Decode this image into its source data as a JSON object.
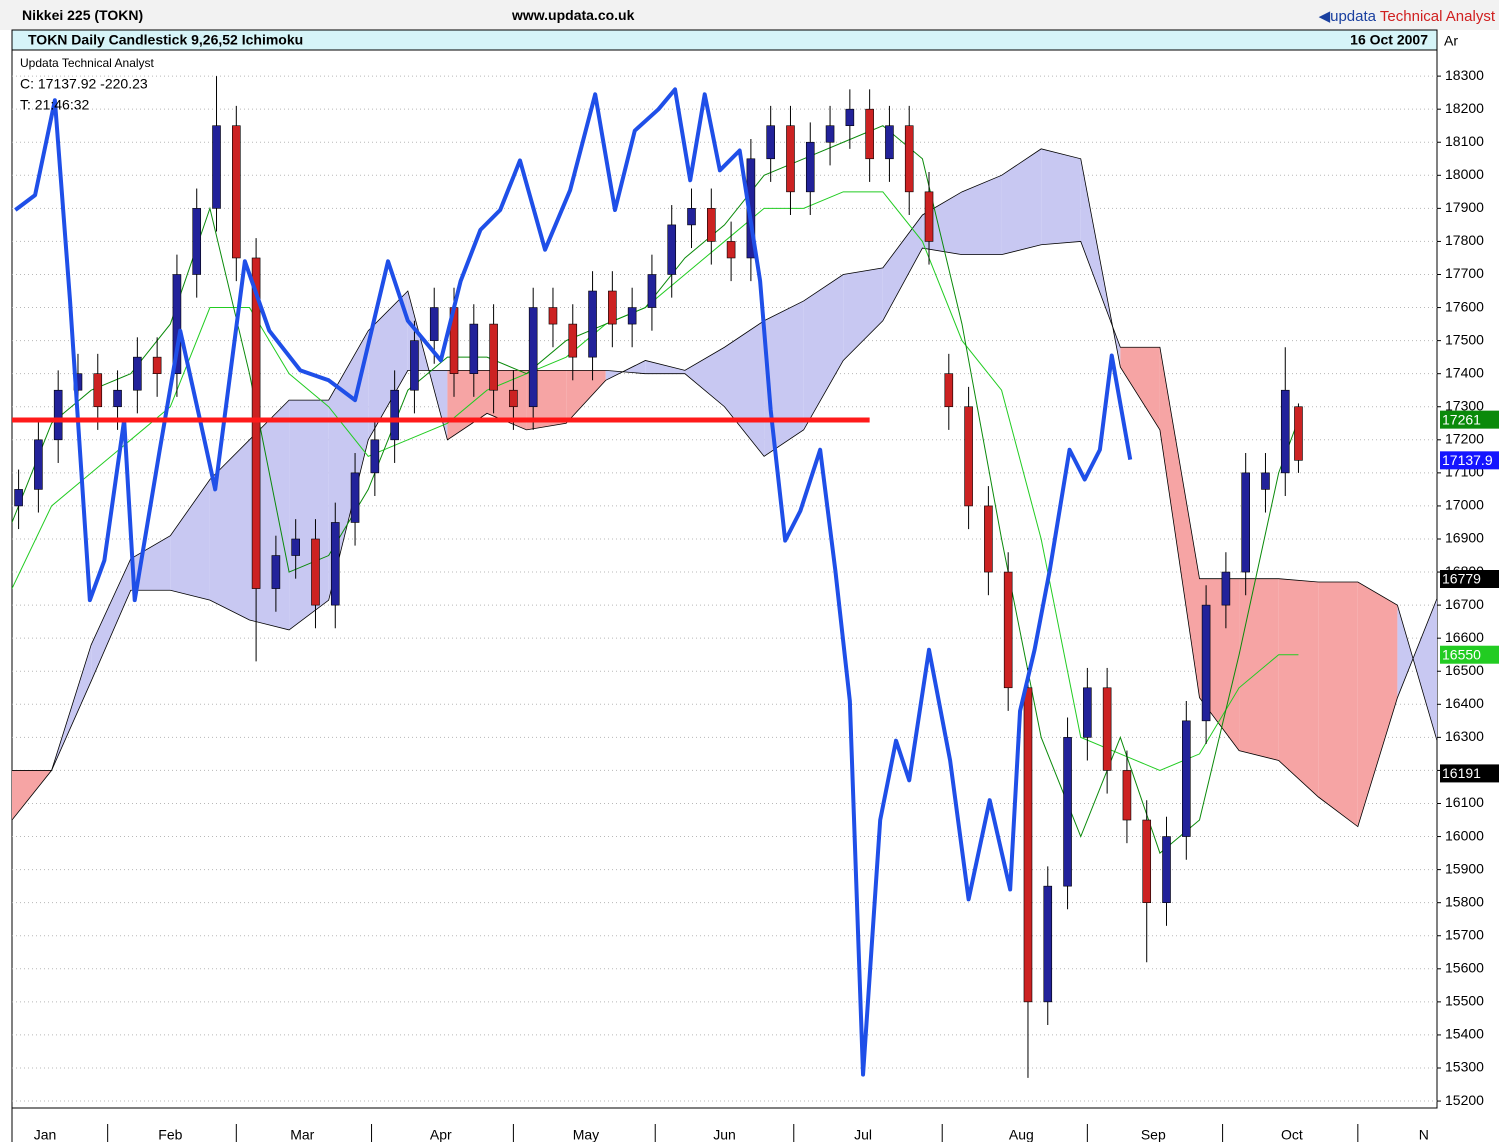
{
  "header": {
    "symbol": "Nikkei 225 (TOKN)",
    "url": "www.updata.co.uk",
    "brand": "updata",
    "brand_tail": "Technical Analyst"
  },
  "chart_data": {
    "type": "candlestick",
    "title": "TOKN Daily Candlestick  9,26,52 Ichimoku",
    "date": "16 Oct 2007",
    "corner_label": "Ar",
    "info": [
      "Updata Technical Analyst",
      "C: 17137.92  -220.23",
      "T: 21:46:32"
    ],
    "x": [
      1,
      4,
      7,
      10,
      13,
      16,
      19,
      22,
      25,
      28,
      31,
      34,
      37,
      40,
      43,
      46,
      49,
      52,
      55,
      58,
      61,
      64,
      67,
      70,
      73,
      76,
      79,
      82,
      85,
      88,
      91,
      94,
      97,
      100,
      103,
      106,
      109,
      112,
      115,
      118,
      121,
      124,
      127,
      130,
      133,
      136,
      139,
      142,
      145,
      148,
      151,
      154,
      157,
      160,
      163,
      166,
      169,
      172,
      175,
      178,
      181,
      184,
      187,
      190,
      193,
      195
    ],
    "open": [
      17000,
      17050,
      17200,
      17350,
      17400,
      17300,
      17350,
      17450,
      17400,
      17700,
      17900,
      18150,
      17750,
      16750,
      16850,
      16900,
      16700,
      16950,
      17100,
      17200,
      17350,
      17500,
      17600,
      17400,
      17550,
      17350,
      17300,
      17600,
      17550,
      17450,
      17650,
      17550,
      17600,
      17700,
      17850,
      17900,
      17800,
      17750,
      18050,
      18150,
      17950,
      18100,
      18150,
      18200,
      18050,
      18150,
      17950,
      17400,
      17300,
      17000,
      16800,
      16450,
      15500,
      15850,
      16300,
      16450,
      16200,
      16050,
      15800,
      16000,
      16350,
      16700,
      16800,
      17050,
      17100,
      17300
    ],
    "high": [
      17110,
      17260,
      17410,
      17460,
      17460,
      17410,
      17510,
      17510,
      17760,
      17960,
      18300,
      18210,
      17810,
      16910,
      16960,
      16960,
      17010,
      17160,
      17260,
      17410,
      17560,
      17660,
      17660,
      17610,
      17610,
      17410,
      17660,
      17660,
      17610,
      17710,
      17710,
      17660,
      17760,
      17910,
      17960,
      17960,
      17860,
      18110,
      18210,
      18210,
      18160,
      18210,
      18260,
      18260,
      18210,
      18210,
      18010,
      17460,
      17360,
      17060,
      16860,
      16510,
      15910,
      16360,
      16510,
      16510,
      16260,
      16110,
      16060,
      16410,
      16760,
      16860,
      17160,
      17160,
      17480,
      17310
    ],
    "low": [
      16930,
      16980,
      17130,
      17280,
      17230,
      17230,
      17280,
      17330,
      17330,
      17630,
      17830,
      17680,
      16530,
      16680,
      16780,
      16630,
      16630,
      16880,
      17030,
      17130,
      17280,
      17430,
      17330,
      17330,
      17280,
      17230,
      17230,
      17480,
      17380,
      17380,
      17480,
      17480,
      17530,
      17630,
      17780,
      17730,
      17680,
      17680,
      17980,
      17880,
      17880,
      18030,
      18080,
      17980,
      17980,
      17880,
      17730,
      17230,
      16930,
      16730,
      16380,
      15270,
      15430,
      15780,
      16230,
      16130,
      15980,
      15620,
      15730,
      15930,
      16280,
      16630,
      16730,
      16980,
      17030,
      17100
    ],
    "close": [
      17050,
      17200,
      17350,
      17400,
      17300,
      17350,
      17450,
      17400,
      17700,
      17900,
      18150,
      17750,
      16750,
      16850,
      16900,
      16700,
      16950,
      17100,
      17200,
      17350,
      17500,
      17600,
      17400,
      17550,
      17350,
      17300,
      17600,
      17550,
      17450,
      17650,
      17550,
      17600,
      17700,
      17850,
      17900,
      17800,
      17750,
      18050,
      18150,
      17950,
      18100,
      18150,
      18200,
      18050,
      18150,
      17950,
      17800,
      17300,
      17000,
      16800,
      16450,
      15500,
      15850,
      16300,
      16450,
      16200,
      16050,
      15800,
      16000,
      16350,
      16700,
      16800,
      17100,
      17100,
      17350,
      17137.92
    ],
    "up_color": "#22229a",
    "down_color": "#cc2222",
    "overlay": {
      "color": "#1f4fe8",
      "x": [
        0.5,
        3.5,
        6.5,
        8.8,
        11.8,
        14,
        17,
        18.6,
        22.4,
        25.5,
        28.5,
        30.8,
        35.3,
        39,
        43.7,
        48,
        52,
        57,
        60,
        65,
        68,
        71,
        74,
        77,
        80.8,
        84.6,
        88.4,
        91.4,
        94.4,
        98,
        100.5,
        102.8,
        105,
        107.3,
        110.3,
        113.4,
        115,
        117.2,
        119.5,
        122.5,
        124.8,
        127,
        129,
        131.6,
        134,
        136,
        139,
        142.2,
        145,
        148.2,
        151.3,
        152.8,
        155,
        157.3,
        160.3,
        162.6,
        164.9,
        166.7,
        169.5
      ],
      "values": [
        17895,
        17940,
        18227,
        17620,
        16715,
        16835,
        17260,
        16715,
        17170,
        17530,
        17260,
        17050,
        17740,
        17530,
        17410,
        17380,
        17320,
        17740,
        17560,
        17440,
        17680,
        17835,
        17895,
        18045,
        17775,
        17955,
        18245,
        17895,
        18135,
        18200,
        18260,
        17985,
        18245,
        18015,
        18075,
        17680,
        17290,
        16895,
        16985,
        17170,
        16805,
        16410,
        15280,
        16050,
        16290,
        16170,
        16565,
        16230,
        15810,
        16110,
        15840,
        16380,
        16565,
        16805,
        17170,
        17080,
        17170,
        17455,
        17140
      ]
    },
    "tenkan": {
      "color": "#0a8a0a",
      "x": [
        0,
        6,
        12,
        18,
        24,
        30,
        36,
        42,
        48,
        54,
        60,
        66,
        72,
        78,
        84,
        90,
        96,
        102,
        108,
        114,
        120,
        126,
        132,
        138,
        144,
        150,
        156,
        162,
        168,
        174,
        180,
        186,
        192,
        195
      ],
      "values": [
        16950,
        17250,
        17350,
        17400,
        17550,
        17900,
        17400,
        16800,
        16850,
        17050,
        17350,
        17450,
        17450,
        17400,
        17500,
        17550,
        17600,
        17750,
        17850,
        18000,
        18050,
        18100,
        18150,
        18050,
        17550,
        16900,
        16300,
        16000,
        16300,
        15950,
        16050,
        16550,
        17100,
        17261
      ]
    },
    "kijun": {
      "color": "#22cc22",
      "x": [
        0,
        6,
        12,
        18,
        24,
        30,
        36,
        42,
        48,
        54,
        60,
        66,
        72,
        78,
        84,
        90,
        96,
        102,
        108,
        114,
        120,
        126,
        132,
        138,
        144,
        150,
        156,
        162,
        168,
        174,
        180,
        186,
        192,
        195
      ],
      "values": [
        16750,
        17000,
        17100,
        17200,
        17300,
        17600,
        17600,
        17400,
        17300,
        17150,
        17200,
        17250,
        17350,
        17400,
        17450,
        17550,
        17600,
        17700,
        17800,
        17900,
        17900,
        17950,
        17950,
        17800,
        17500,
        17350,
        16900,
        16300,
        16250,
        16200,
        16250,
        16450,
        16550,
        16550
      ]
    },
    "cloud": {
      "bull_color": "#c8c8f2",
      "bear_color": "#f6a4a4",
      "x": [
        0,
        6,
        12,
        18,
        24,
        30,
        36,
        42,
        48,
        54,
        60,
        66,
        72,
        78,
        84,
        90,
        96,
        102,
        108,
        114,
        120,
        126,
        132,
        138,
        144,
        150,
        156,
        162,
        168,
        174,
        180,
        186,
        192,
        198,
        204,
        210,
        216
      ],
      "span_a": [
        16050,
        16200,
        16580,
        16840,
        16910,
        17080,
        17200,
        17320,
        17320,
        17530,
        17650,
        17200,
        17280,
        17230,
        17250,
        17380,
        17440,
        17410,
        17480,
        17560,
        17620,
        17700,
        17720,
        17880,
        17950,
        18000,
        18080,
        18050,
        17420,
        17230,
        16420,
        16260,
        16230,
        16120,
        16030,
        16420,
        16720
      ],
      "span_b": [
        16200,
        16200,
        16470,
        16745,
        16745,
        16715,
        16655,
        16625,
        16715,
        17200,
        17410,
        17410,
        17410,
        17410,
        17410,
        17410,
        17400,
        17400,
        17300,
        17150,
        17230,
        17440,
        17560,
        17780,
        17760,
        17760,
        17790,
        17800,
        17480,
        17480,
        16780,
        16780,
        16780,
        16770,
        16770,
        16700,
        16290
      ]
    },
    "hline": {
      "color": "#ff1a1a",
      "value": 17260,
      "x": [
        0,
        130
      ]
    },
    "price_labels": [
      {
        "value": 17261,
        "color": "#0a8a0a"
      },
      {
        "value": 17137.92,
        "label": "17137.9",
        "color": "#1414ff"
      },
      {
        "value": 16779,
        "color": "#000000"
      },
      {
        "value": 16550,
        "color": "#22cc22"
      },
      {
        "value": 16191,
        "color": "#000000"
      }
    ],
    "xlim": [
      0,
      216
    ],
    "xticks": [
      {
        "value": 5,
        "label": "Jan"
      },
      {
        "value": 24,
        "label": "Feb"
      },
      {
        "value": 44,
        "label": "Mar"
      },
      {
        "value": 65,
        "label": "Apr"
      },
      {
        "value": 87,
        "label": "May"
      },
      {
        "value": 108,
        "label": "Jun"
      },
      {
        "value": 129,
        "label": "Jul"
      },
      {
        "value": 153,
        "label": "Aug"
      },
      {
        "value": 173,
        "label": "Sep"
      },
      {
        "value": 194,
        "label": "Oct"
      },
      {
        "value": 214,
        "label": "N"
      }
    ],
    "ylim": [
      15179,
      18379
    ],
    "yticks": [
      15200,
      15300,
      15400,
      15500,
      15600,
      15700,
      15800,
      15900,
      16000,
      16100,
      16200,
      16300,
      16400,
      16500,
      16600,
      16700,
      16800,
      16900,
      17000,
      17100,
      17200,
      17300,
      17400,
      17500,
      17600,
      17700,
      17800,
      17900,
      18000,
      18100,
      18200,
      18300
    ],
    "grid": true
  }
}
